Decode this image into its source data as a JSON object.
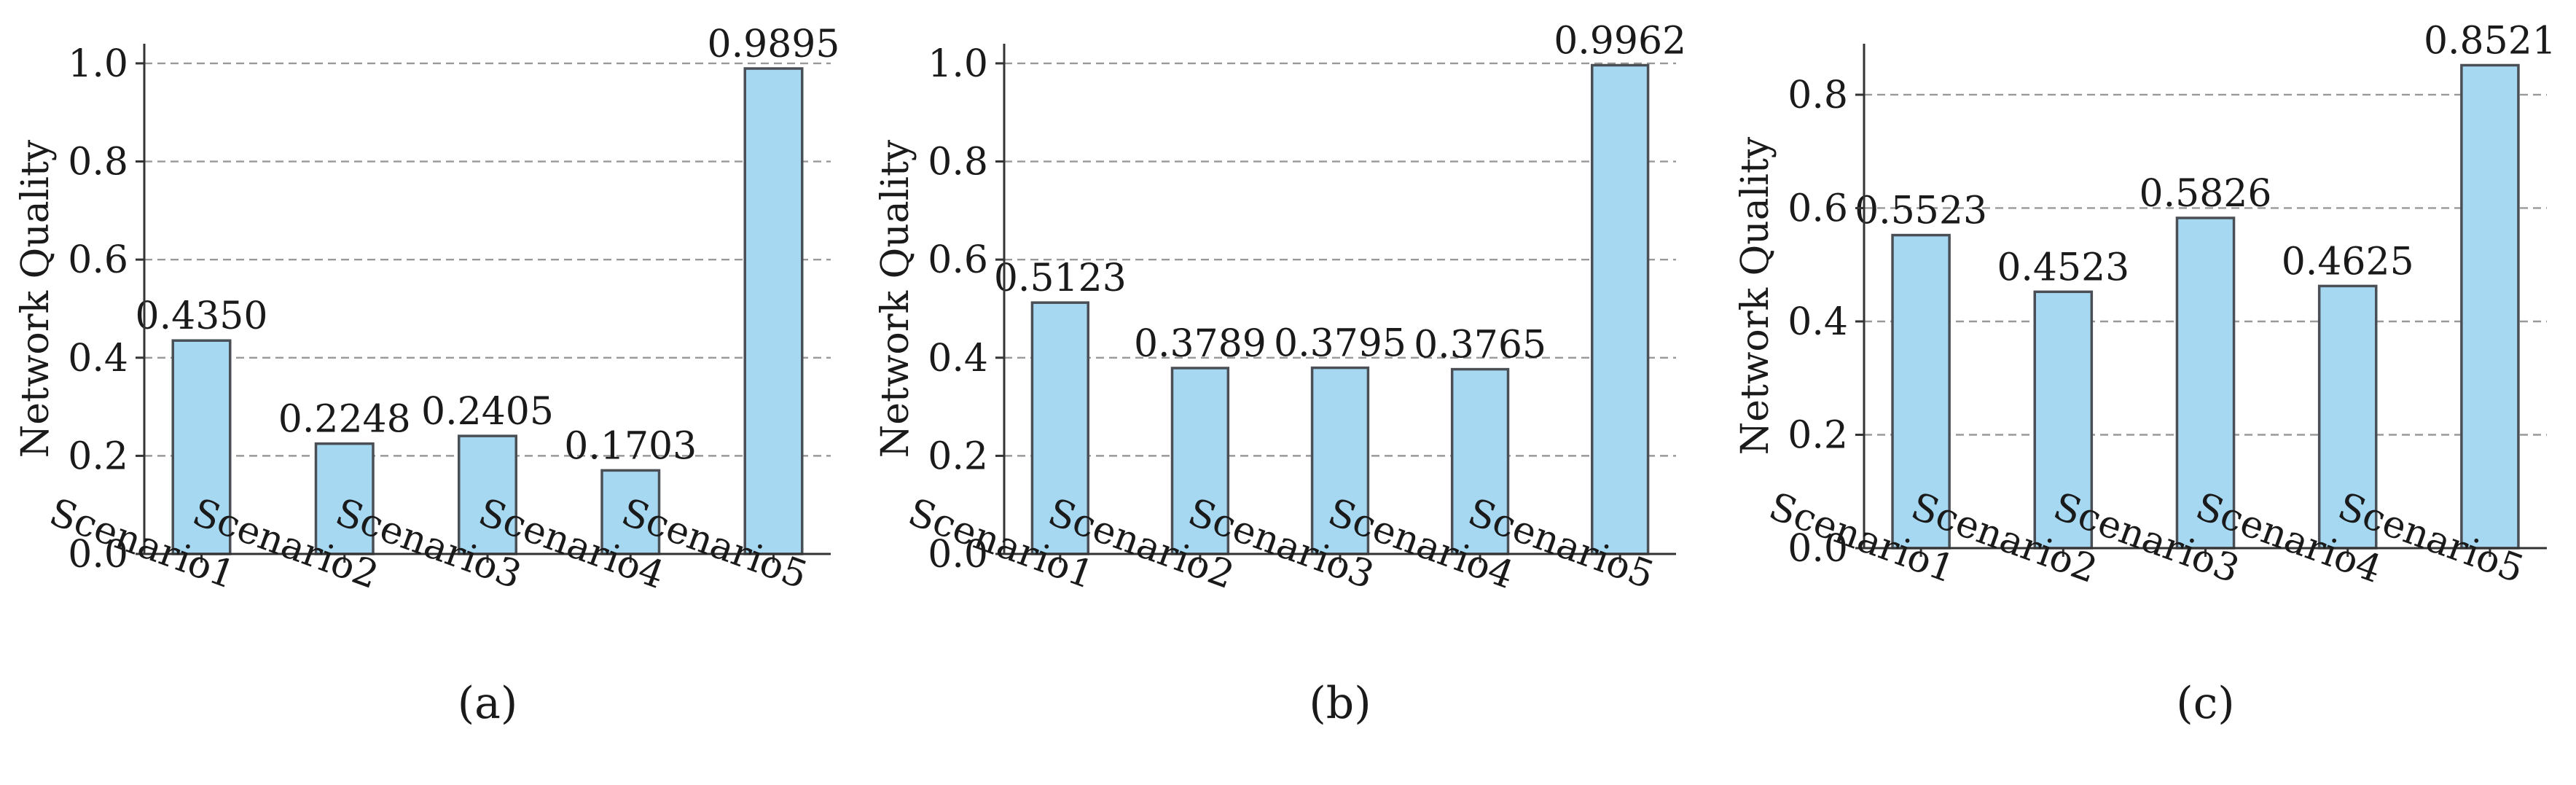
{
  "colors": {
    "bar_fill": "#a6d8f2",
    "bar_edge": "#4a4f55"
  },
  "chart_data": [
    {
      "type": "bar",
      "caption": "(a)",
      "categories": [
        "Scenario1",
        "Scenario2",
        "Scenario3",
        "Scenario4",
        "Scenario5"
      ],
      "values": [
        0.435,
        0.2248,
        0.2405,
        0.1703,
        0.9895
      ],
      "value_labels": [
        "0.4350",
        "0.2248",
        "0.2405",
        "0.1703",
        "0.9895"
      ],
      "ylabel": "Network Quality",
      "ylim": [
        0,
        1.04
      ],
      "yticks": [
        0.0,
        0.2,
        0.4,
        0.6,
        0.8,
        1.0
      ],
      "ytick_labels": [
        "0.0",
        "0.2",
        "0.4",
        "0.6",
        "0.8",
        "1.0"
      ],
      "grid": "y-dashed"
    },
    {
      "type": "bar",
      "caption": "(b)",
      "categories": [
        "Scenario1",
        "Scenario2",
        "Scenario3",
        "Scenario4",
        "Scenario5"
      ],
      "values": [
        0.5123,
        0.3789,
        0.3795,
        0.3765,
        0.9962
      ],
      "value_labels": [
        "0.5123",
        "0.3789",
        "0.3795",
        "0.3765",
        "0.9962"
      ],
      "ylabel": "Network Quality",
      "ylim": [
        0,
        1.04
      ],
      "yticks": [
        0.0,
        0.2,
        0.4,
        0.6,
        0.8,
        1.0
      ],
      "ytick_labels": [
        "0.0",
        "0.2",
        "0.4",
        "0.6",
        "0.8",
        "1.0"
      ],
      "grid": "y-dashed"
    },
    {
      "type": "bar",
      "caption": "(c)",
      "categories": [
        "Scenario1",
        "Scenario2",
        "Scenario3",
        "Scenario4",
        "Scenario5"
      ],
      "values": [
        0.5523,
        0.4523,
        0.5826,
        0.4625,
        0.8521
      ],
      "value_labels": [
        "0.5523",
        "0.4523",
        "0.5826",
        "0.4625",
        "0.8521"
      ],
      "ylabel": "Network Quality",
      "ylim": [
        0,
        0.89
      ],
      "yticks": [
        0.0,
        0.2,
        0.4,
        0.6,
        0.8
      ],
      "ytick_labels": [
        "0.0",
        "0.2",
        "0.4",
        "0.6",
        "0.8"
      ],
      "grid": "y-dashed"
    }
  ]
}
